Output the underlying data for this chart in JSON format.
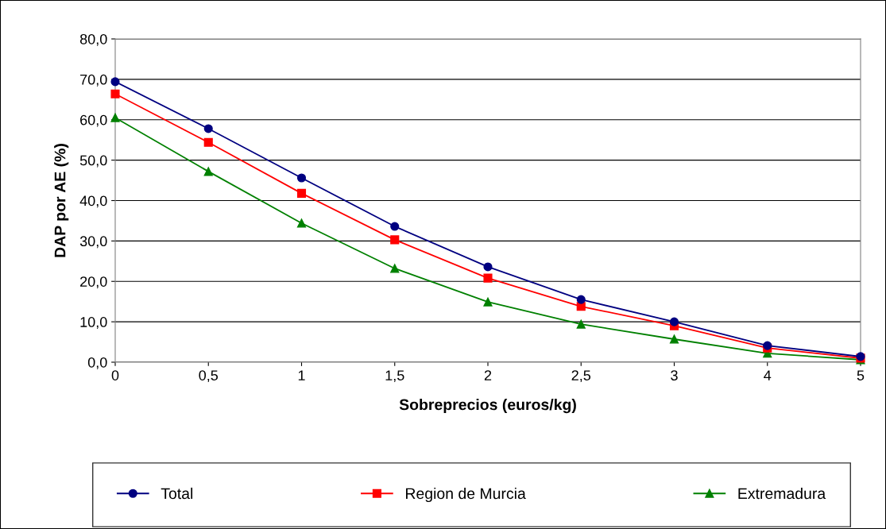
{
  "chart_data": {
    "type": "line",
    "xlabel": "Sobreprecios (euros/kg)",
    "ylabel": "DAP por AE (%)",
    "categories": [
      "0",
      "0,5",
      "1",
      "1,5",
      "2",
      "2,5",
      "3",
      "4",
      "5"
    ],
    "series": [
      {
        "name": "Total",
        "color": "#000080",
        "marker": "circle",
        "values": [
          69.4,
          57.8,
          45.6,
          33.6,
          23.6,
          15.5,
          10.0,
          4.1,
          1.4
        ]
      },
      {
        "name": "Region de Murcia",
        "color": "#ff0000",
        "marker": "square",
        "values": [
          66.4,
          54.4,
          41.8,
          30.3,
          20.8,
          13.8,
          9.0,
          3.5,
          1.0
        ]
      },
      {
        "name": "Extremadura",
        "color": "#008000",
        "marker": "triangle",
        "values": [
          60.5,
          47.2,
          34.4,
          23.2,
          14.9,
          9.4,
          5.7,
          2.2,
          0.6
        ]
      }
    ],
    "ylim": [
      0,
      80
    ],
    "yticks": [
      {
        "value": 0,
        "label": "0,0"
      },
      {
        "value": 10,
        "label": "10,0"
      },
      {
        "value": 20,
        "label": "20,0"
      },
      {
        "value": 30,
        "label": "30,0"
      },
      {
        "value": 40,
        "label": "40,0"
      },
      {
        "value": 50,
        "label": "50,0"
      },
      {
        "value": 60,
        "label": "60,0"
      },
      {
        "value": 70,
        "label": "70,0"
      },
      {
        "value": 80,
        "label": "80,0"
      }
    ],
    "grid": "y",
    "legend": "bottom",
    "line_style": "solid"
  }
}
